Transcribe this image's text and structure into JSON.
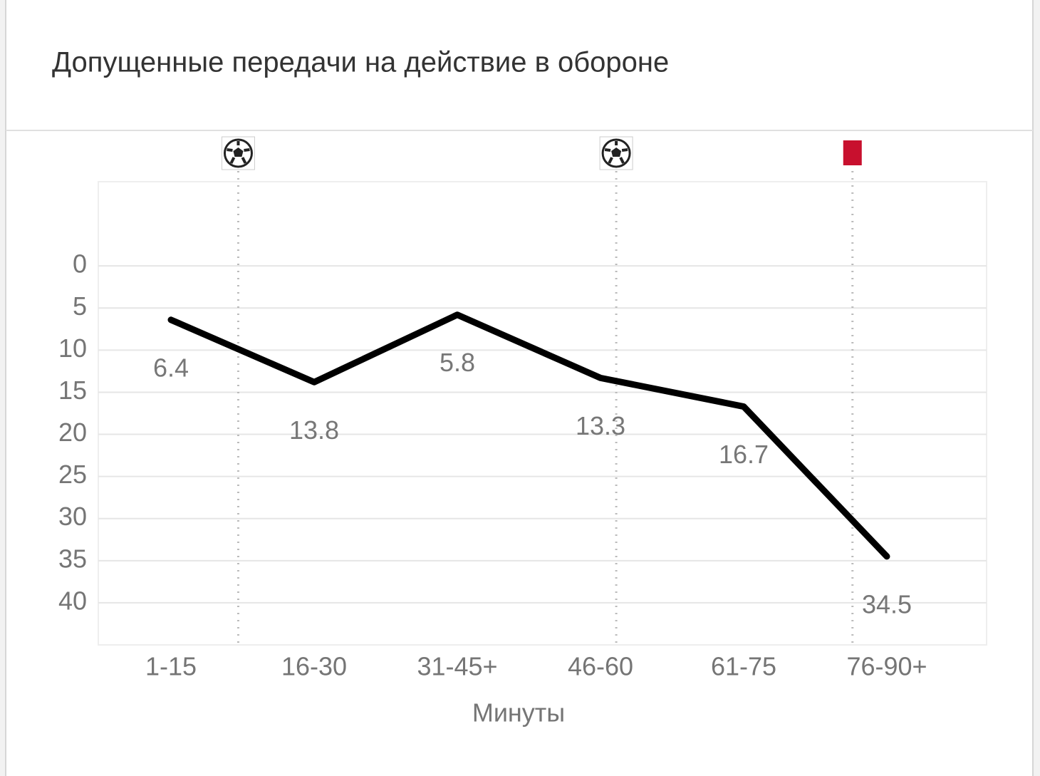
{
  "chart_data": {
    "type": "line",
    "title": "Допущенные передачи на действие в обороне",
    "x_label": "Минуты",
    "categories": [
      "1-15",
      "16-30",
      "31-45+",
      "46-60",
      "61-75",
      "76-90+"
    ],
    "series": [
      {
        "color": "#000000",
        "values": [
          6.4,
          13.8,
          5.8,
          13.3,
          16.7,
          34.5
        ]
      }
    ],
    "ylim": [
      -10,
      45
    ],
    "y_inverted": true,
    "yticks": [
      0,
      5,
      10,
      15,
      20,
      25,
      30,
      35,
      40
    ],
    "grid": true,
    "events": [
      {
        "icon": "goal",
        "x": 0.47
      },
      {
        "icon": "goal",
        "x": 3.11
      },
      {
        "icon": "red-card",
        "x": 4.76
      }
    ]
  }
}
